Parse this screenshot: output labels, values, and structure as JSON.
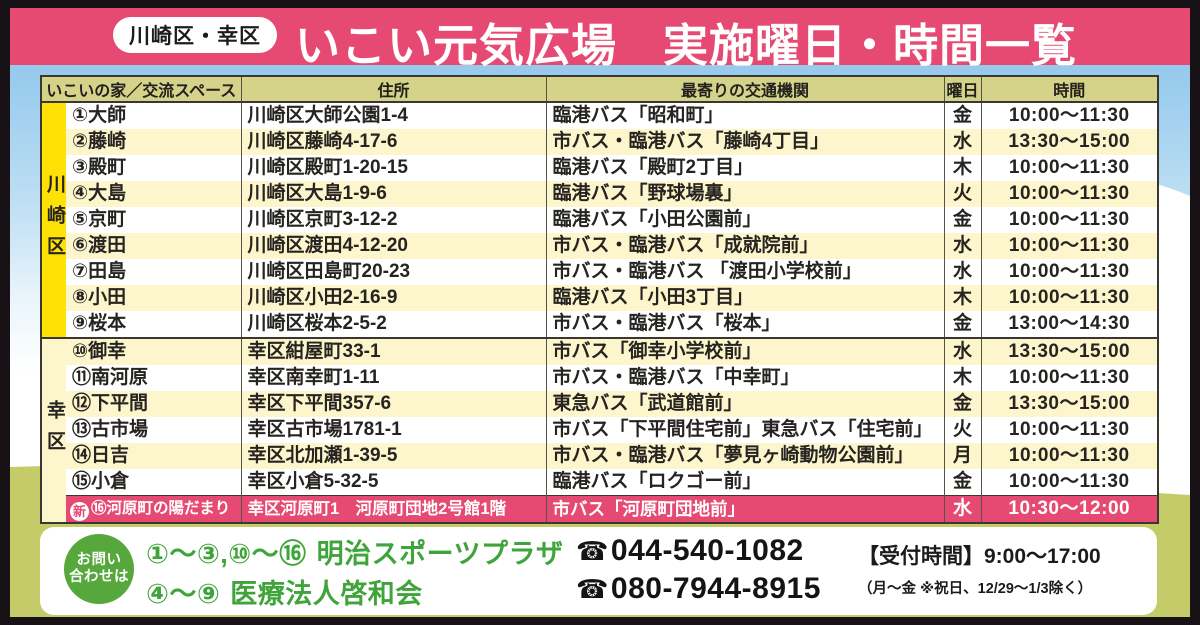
{
  "banner": {
    "ward": "川崎区・幸区",
    "title": "いこい元気広場　実施曜日・時間一覧"
  },
  "table": {
    "headers": [
      "いこいの家／交流スペース",
      "住所",
      "最寄りの交通機関",
      "曜日",
      "時間"
    ],
    "sections": [
      {
        "region": "川崎区",
        "rows": [
          {
            "name": "①大師",
            "address": "川崎区大師公園1-4",
            "transit": "臨港バス「昭和町」",
            "day": "金",
            "time": "10:00～11:30"
          },
          {
            "name": "②藤崎",
            "address": "川崎区藤崎4-17-6",
            "transit": "市バス・臨港バス「藤崎4丁目」",
            "day": "水",
            "time": "13:30～15:00"
          },
          {
            "name": "③殿町",
            "address": "川崎区殿町1-20-15",
            "transit": "臨港バス「殿町2丁目」",
            "day": "木",
            "time": "10:00～11:30"
          },
          {
            "name": "④大島",
            "address": "川崎区大島1-9-6",
            "transit": "臨港バス「野球場裏」",
            "day": "火",
            "time": "10:00～11:30"
          },
          {
            "name": "⑤京町",
            "address": "川崎区京町3-12-2",
            "transit": "臨港バス「小田公園前」",
            "day": "金",
            "time": "10:00～11:30"
          },
          {
            "name": "⑥渡田",
            "address": "川崎区渡田4-12-20",
            "transit": "市バス・臨港バス「成就院前」",
            "day": "水",
            "time": "10:00～11:30"
          },
          {
            "name": "⑦田島",
            "address": "川崎区田島町20-23",
            "transit": "市バス・臨港バス 「渡田小学校前」",
            "day": "水",
            "time": "10:00～11:30"
          },
          {
            "name": "⑧小田",
            "address": "川崎区小田2-16-9",
            "transit": "臨港バス「小田3丁目」",
            "day": "木",
            "time": "10:00～11:30"
          },
          {
            "name": "⑨桜本",
            "address": "川崎区桜本2-5-2",
            "transit": "市バス・臨港バス「桜本」",
            "day": "金",
            "time": "13:00～14:30"
          }
        ]
      },
      {
        "region": "幸区",
        "rows": [
          {
            "name": "⑩御幸",
            "address": "幸区紺屋町33-1",
            "transit": "市バス「御幸小学校前」",
            "day": "水",
            "time": "13:30～15:00"
          },
          {
            "name": "⑪南河原",
            "address": "幸区南幸町1-11",
            "transit": "市バス・臨港バス「中幸町」",
            "day": "木",
            "time": "10:00～11:30"
          },
          {
            "name": "⑫下平間",
            "address": "幸区下平間357-6",
            "transit": "東急バス「武道館前」",
            "day": "金",
            "time": "13:30～15:00"
          },
          {
            "name": "⑬古市場",
            "address": "幸区古市場1781-1",
            "transit": "市バス「下平間住宅前」東急バス「住宅前」",
            "day": "火",
            "time": "10:00～11:30"
          },
          {
            "name": "⑭日吉",
            "address": "幸区北加瀬1-39-5",
            "transit": "市バス・臨港バス「夢見ヶ崎動物公園前」",
            "day": "月",
            "time": "10:00～11:30"
          },
          {
            "name": "⑮小倉",
            "address": "幸区小倉5-32-5",
            "transit": "臨港バス「ロクゴー前」",
            "day": "金",
            "time": "10:00～11:30"
          },
          {
            "badge": "新",
            "name": "⑯河原町の陽だまり",
            "address": "幸区河原町1　河原町団地2号館1階",
            "transit": "市バス「河原町団地前」",
            "day": "水",
            "time": "10:30～12:00",
            "highlight": true
          }
        ]
      }
    ]
  },
  "contact": {
    "circle_line1": "お問い",
    "circle_line2": "合わせは",
    "phone_icon": "☎",
    "lines": [
      {
        "range": "①～③,⑩～⑯",
        "org": "明治スポーツプラザ",
        "phone": "044-540-1082"
      },
      {
        "range": "④～⑨",
        "org": "医療法人啓和会",
        "phone": "080-7944-8915"
      }
    ],
    "hours_title": "【受付時間】9:00～17:00",
    "hours_note": "（月～金 ※祝日、12/29～1/3除く）"
  }
}
